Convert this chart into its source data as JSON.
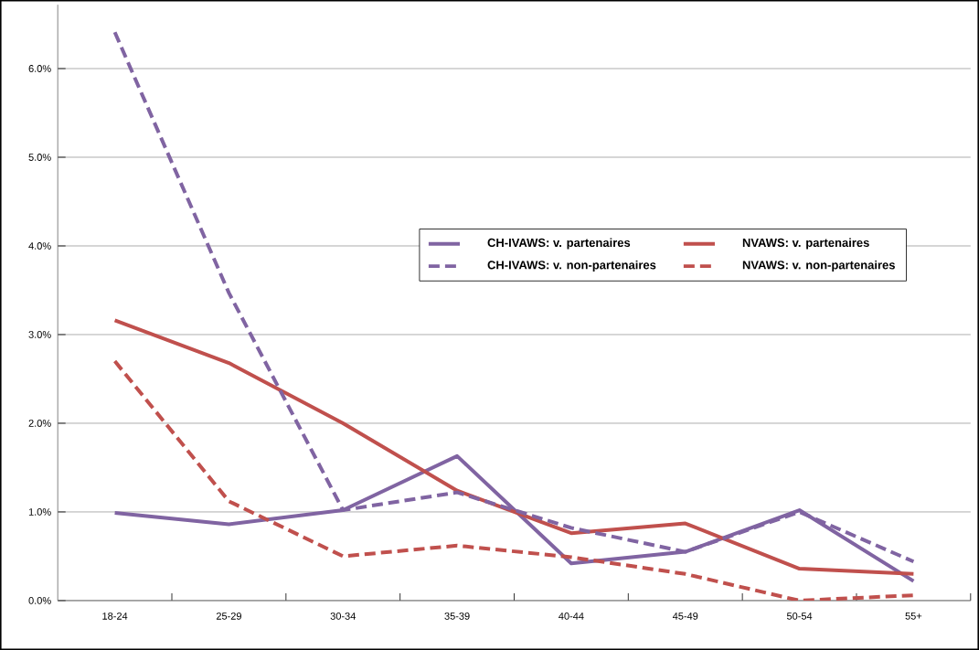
{
  "chart_data": {
    "type": "line",
    "categories": [
      "18-24",
      "25-29",
      "30-34",
      "35-39",
      "40-44",
      "45-49",
      "50-54",
      "55+"
    ],
    "series": [
      {
        "name": "CH-IVAWS: v. partenaires",
        "color": "#8064a2",
        "line_style": "solid",
        "values": [
          0.99,
          0.86,
          1.02,
          1.63,
          0.42,
          0.55,
          1.02,
          0.22
        ]
      },
      {
        "name": "NVAWS: v. partenaires",
        "color": "#c0504d",
        "line_style": "solid",
        "values": [
          3.16,
          2.68,
          2.0,
          1.24,
          0.76,
          0.87,
          0.36,
          0.3
        ]
      },
      {
        "name": "CH-IVAWS: v. non-partenaires",
        "color": "#8064a2",
        "line_style": "dashed",
        "values": [
          6.41,
          3.47,
          1.02,
          1.22,
          0.82,
          0.55,
          1.0,
          0.44
        ]
      },
      {
        "name": "NVAWS: v. non-partenaires",
        "color": "#c0504d",
        "line_style": "dashed",
        "values": [
          2.7,
          1.12,
          0.5,
          0.62,
          0.49,
          0.3,
          0.0,
          0.06
        ]
      }
    ],
    "ylim": [
      0,
      6.72
    ],
    "yticks": [
      {
        "value": 0,
        "label": "0.0%"
      },
      {
        "value": 1,
        "label": "1.0%"
      },
      {
        "value": 2,
        "label": "2.0%"
      },
      {
        "value": 3,
        "label": "3.0%"
      },
      {
        "value": 4,
        "label": "4.0%"
      },
      {
        "value": 5,
        "label": "5.0%"
      },
      {
        "value": 6,
        "label": "6.0%"
      }
    ],
    "grid": "y",
    "legend": "right",
    "marker": "none"
  }
}
